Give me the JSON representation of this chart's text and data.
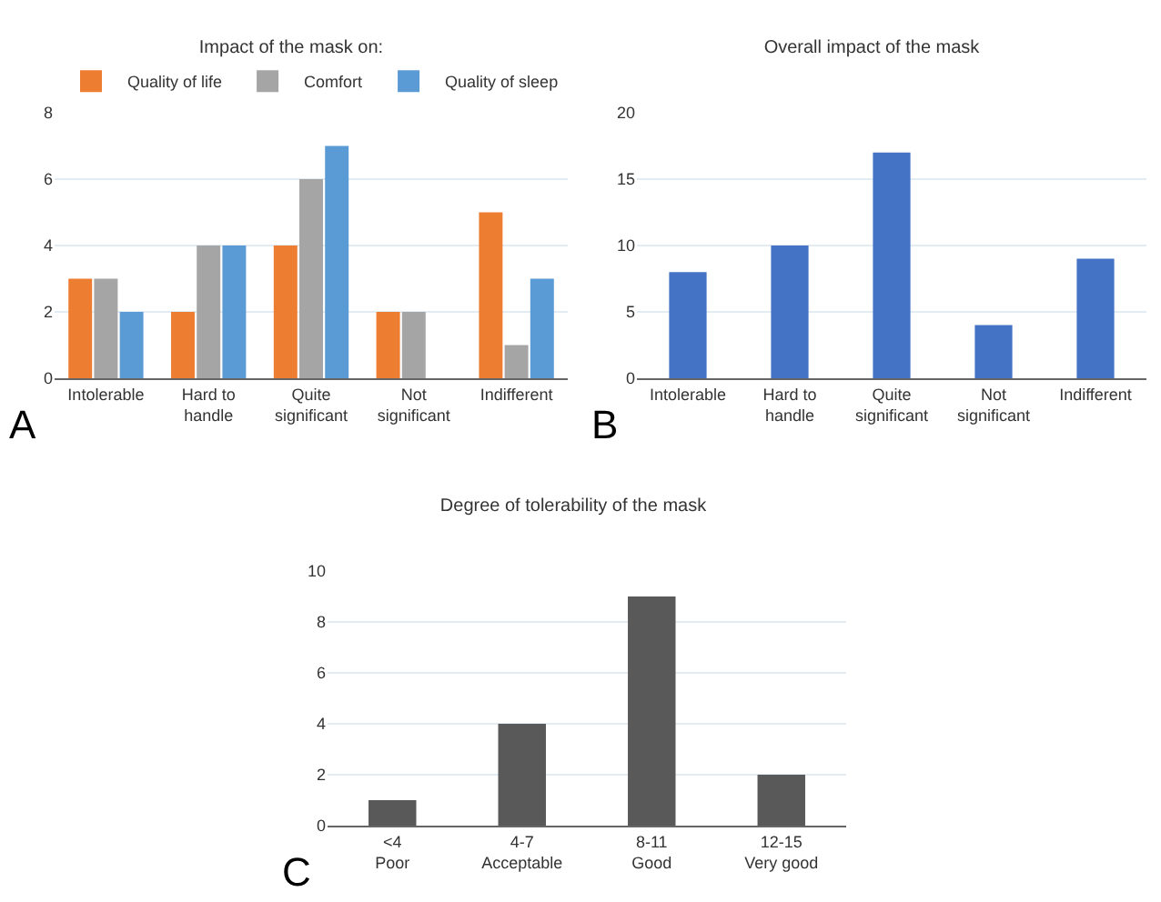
{
  "chart_data": [
    {
      "type": "bar",
      "title": "Impact of the mask on:",
      "categories": [
        "Intolerable",
        "Hard to\nhandle",
        "Quite\nsignificant",
        "Not\nsignificant",
        "Indifferent"
      ],
      "series": [
        {
          "name": "Quality of life",
          "color": "#ed7d31",
          "values": [
            3,
            2,
            4,
            2,
            5
          ]
        },
        {
          "name": "Comfort",
          "color": "#a5a5a5",
          "values": [
            3,
            4,
            6,
            2,
            1
          ]
        },
        {
          "name": "Quality of sleep",
          "color": "#5b9bd5",
          "values": [
            2,
            4,
            7,
            0,
            3
          ]
        }
      ],
      "ylim": [
        0,
        8
      ],
      "yticks": [
        0,
        2,
        4,
        6,
        8
      ],
      "grid": "y",
      "legend": "top",
      "annotations": [
        "A"
      ]
    },
    {
      "type": "bar",
      "title": "Overall impact of the mask",
      "categories": [
        "Intolerable",
        "Hard to\nhandle",
        "Quite\nsignificant",
        "Not\nsignificant",
        "Indifferent"
      ],
      "series": [
        {
          "color": "#4472c4",
          "values": [
            8,
            10,
            17,
            4,
            9
          ]
        }
      ],
      "ylim": [
        0,
        20
      ],
      "yticks": [
        0,
        5,
        10,
        15,
        20
      ],
      "grid": "y",
      "annotations": [
        "B"
      ]
    },
    {
      "type": "bar",
      "title": "Degree of tolerability of the mask",
      "categories": [
        "<4\nPoor",
        "4-7\nAcceptable",
        "8-11\nGood",
        "12-15\nVery good"
      ],
      "series": [
        {
          "color": "#595959",
          "values": [
            1,
            4,
            9,
            2
          ]
        }
      ],
      "ylim": [
        0,
        10
      ],
      "yticks": [
        0,
        2,
        4,
        6,
        8,
        10
      ],
      "grid": "y",
      "annotations": [
        "C"
      ]
    }
  ]
}
